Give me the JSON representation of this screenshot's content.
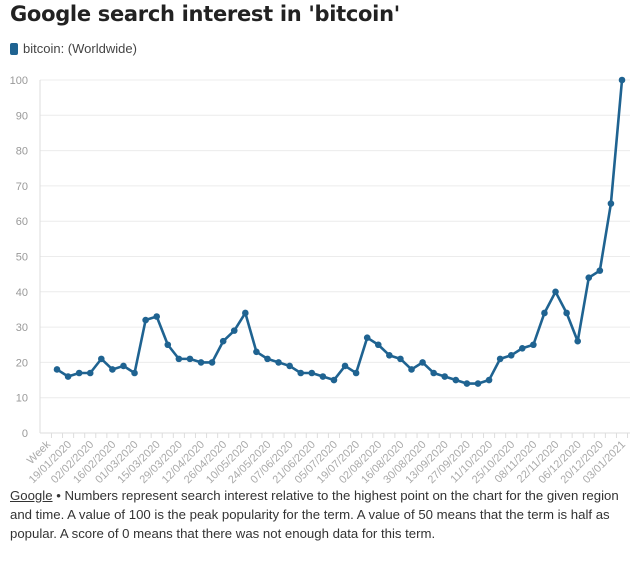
{
  "chart_data": {
    "type": "line",
    "title": "Google search interest in 'bitcoin'",
    "legend": [
      {
        "name": "bitcoin: (Worldwide)",
        "color": "#1f6391"
      }
    ],
    "legend_placement": "top-left",
    "xlabel": "Week",
    "ylim": [
      0,
      100
    ],
    "yticks": [
      0,
      10,
      20,
      30,
      40,
      50,
      60,
      70,
      80,
      90,
      100
    ],
    "grid": true,
    "xtick_labels": [
      "19/01/2020",
      "02/02/2020",
      "16/02/2020",
      "01/03/2020",
      "15/03/2020",
      "29/03/2020",
      "12/04/2020",
      "26/04/2020",
      "10/05/2020",
      "24/05/2020",
      "07/06/2020",
      "21/06/2020",
      "05/07/2020",
      "19/07/2020",
      "02/08/2020",
      "16/08/2020",
      "30/08/2020",
      "13/09/2020",
      "27/09/2020",
      "11/10/2020",
      "25/10/2020",
      "08/11/2020",
      "22/11/2020",
      "06/12/2020",
      "20/12/2020",
      "03/01/2021"
    ],
    "series": [
      {
        "name": "bitcoin: (Worldwide)",
        "color": "#1f6391",
        "values": [
          18,
          16,
          17,
          17,
          21,
          18,
          19,
          17,
          32,
          33,
          25,
          21,
          21,
          20,
          20,
          26,
          29,
          34,
          23,
          21,
          20,
          19,
          17,
          17,
          16,
          15,
          19,
          17,
          27,
          25,
          22,
          21,
          18,
          20,
          17,
          16,
          15,
          14,
          14,
          15,
          21,
          22,
          24,
          25,
          34,
          40,
          34,
          26,
          44,
          46,
          65,
          100
        ]
      }
    ]
  },
  "footer": {
    "source": "Google",
    "separator": " • ",
    "text": "Numbers represent search interest relative to the highest point on the chart for the given region and time. A value of 100 is the peak popularity for the term. A value of 50 means that the term is half as popular. A score of 0 means that there was not enough data for this term."
  }
}
